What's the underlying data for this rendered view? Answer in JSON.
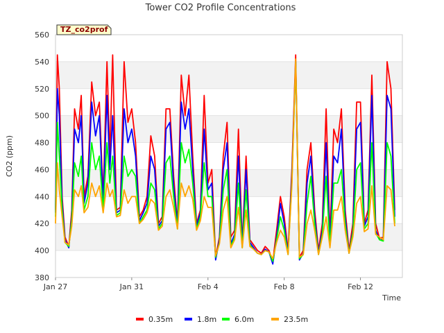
{
  "chart_data": {
    "type": "line",
    "title": "Tower CO2 Profile Concentrations",
    "site_badge": "TZ_co2prof",
    "xlabel": "Time",
    "ylabel": "CO2 (ppm)",
    "ylim": [
      380,
      560
    ],
    "xlim": [
      0,
      18.2
    ],
    "yticks": [
      380,
      400,
      420,
      440,
      460,
      480,
      500,
      520,
      540,
      560
    ],
    "xticks": [
      {
        "value": 0,
        "label": "Jan 27"
      },
      {
        "value": 4,
        "label": "Jan 31"
      },
      {
        "value": 8,
        "label": "Feb 4"
      },
      {
        "value": 12,
        "label": "Feb 8"
      },
      {
        "value": 16,
        "label": "Feb 12"
      }
    ],
    "bands": [
      [
        400,
        420
      ],
      [
        440,
        460
      ],
      [
        480,
        500
      ],
      [
        520,
        540
      ]
    ],
    "x": [
      0.0,
      0.1,
      0.2,
      0.35,
      0.5,
      0.7,
      0.85,
      1.0,
      1.2,
      1.35,
      1.5,
      1.7,
      1.9,
      2.1,
      2.3,
      2.5,
      2.7,
      2.85,
      3.0,
      3.2,
      3.4,
      3.6,
      3.8,
      4.0,
      4.2,
      4.4,
      4.6,
      4.8,
      5.0,
      5.2,
      5.4,
      5.6,
      5.8,
      6.0,
      6.2,
      6.4,
      6.6,
      6.8,
      7.0,
      7.2,
      7.4,
      7.6,
      7.8,
      8.0,
      8.2,
      8.4,
      8.6,
      8.8,
      9.0,
      9.2,
      9.4,
      9.6,
      9.8,
      10.0,
      10.2,
      10.4,
      10.6,
      10.8,
      11.0,
      11.2,
      11.4,
      11.6,
      11.8,
      12.0,
      12.2,
      12.4,
      12.6,
      12.8,
      13.0,
      13.2,
      13.4,
      13.6,
      13.8,
      14.0,
      14.2,
      14.4,
      14.6,
      14.8,
      15.0,
      15.2,
      15.4,
      15.6,
      15.8,
      16.0,
      16.2,
      16.4,
      16.6,
      16.8,
      17.0,
      17.2,
      17.4,
      17.6,
      17.8
    ],
    "series": [
      {
        "name": "0.35m",
        "color": "#ff0000",
        "values": [
          430,
          545,
          520,
          440,
          410,
          403,
          430,
          505,
          490,
          515,
          440,
          455,
          525,
          500,
          510,
          440,
          540,
          470,
          545,
          430,
          432,
          540,
          495,
          505,
          480,
          425,
          430,
          440,
          485,
          470,
          420,
          425,
          505,
          505,
          455,
          420,
          530,
          500,
          530,
          470,
          420,
          430,
          515,
          450,
          460,
          395,
          410,
          470,
          495,
          410,
          415,
          490,
          405,
          470,
          408,
          404,
          400,
          398,
          403,
          400,
          392,
          415,
          440,
          425,
          400,
          460,
          545,
          395,
          400,
          460,
          480,
          430,
          400,
          420,
          505,
          410,
          490,
          480,
          505,
          430,
          400,
          420,
          510,
          510,
          420,
          430,
          530,
          420,
          409,
          410,
          540,
          520,
          430
        ]
      },
      {
        "name": "1.8m",
        "color": "#0000ff",
        "values": [
          428,
          520,
          500,
          435,
          408,
          402,
          425,
          490,
          480,
          500,
          435,
          450,
          510,
          485,
          500,
          435,
          515,
          460,
          500,
          428,
          430,
          505,
          480,
          490,
          470,
          422,
          428,
          435,
          470,
          460,
          418,
          422,
          490,
          495,
          448,
          418,
          510,
          490,
          505,
          460,
          418,
          428,
          490,
          445,
          450,
          393,
          408,
          460,
          480,
          405,
          412,
          470,
          403,
          460,
          406,
          402,
          398,
          397,
          401,
          399,
          390,
          410,
          435,
          420,
          398,
          455,
          540,
          393,
          398,
          450,
          470,
          425,
          398,
          415,
          480,
          405,
          470,
          465,
          490,
          425,
          398,
          415,
          490,
          495,
          418,
          425,
          515,
          415,
          408,
          408,
          515,
          505,
          425
        ]
      },
      {
        "name": "6.0m",
        "color": "#00ff00",
        "values": [
          425,
          495,
          470,
          430,
          406,
          403,
          422,
          465,
          455,
          470,
          430,
          440,
          480,
          460,
          470,
          430,
          480,
          450,
          470,
          426,
          428,
          470,
          455,
          460,
          455,
          420,
          425,
          430,
          450,
          445,
          416,
          420,
          465,
          470,
          440,
          416,
          480,
          465,
          475,
          450,
          416,
          425,
          465,
          440,
          440,
          395,
          406,
          445,
          460,
          403,
          410,
          450,
          402,
          445,
          404,
          401,
          398,
          397,
          400,
          399,
          392,
          408,
          425,
          415,
          397,
          450,
          540,
          394,
          397,
          435,
          455,
          420,
          397,
          412,
          455,
          403,
          450,
          450,
          460,
          420,
          398,
          413,
          460,
          465,
          416,
          420,
          480,
          413,
          408,
          407,
          480,
          470,
          420
        ]
      },
      {
        "name": "23.5m",
        "color": "#ffa500",
        "values": [
          420,
          465,
          445,
          425,
          406,
          404,
          418,
          445,
          440,
          448,
          428,
          432,
          450,
          440,
          448,
          428,
          450,
          440,
          445,
          425,
          426,
          445,
          435,
          440,
          440,
          420,
          423,
          428,
          438,
          435,
          415,
          418,
          440,
          445,
          432,
          416,
          450,
          440,
          448,
          438,
          415,
          422,
          440,
          432,
          432,
          396,
          405,
          430,
          440,
          402,
          408,
          432,
          402,
          430,
          403,
          401,
          398,
          397,
          400,
          399,
          394,
          406,
          415,
          410,
          397,
          448,
          542,
          395,
          397,
          420,
          430,
          415,
          397,
          410,
          425,
          402,
          430,
          430,
          440,
          415,
          398,
          410,
          435,
          440,
          414,
          416,
          448,
          412,
          410,
          408,
          448,
          445,
          418
        ]
      }
    ]
  }
}
